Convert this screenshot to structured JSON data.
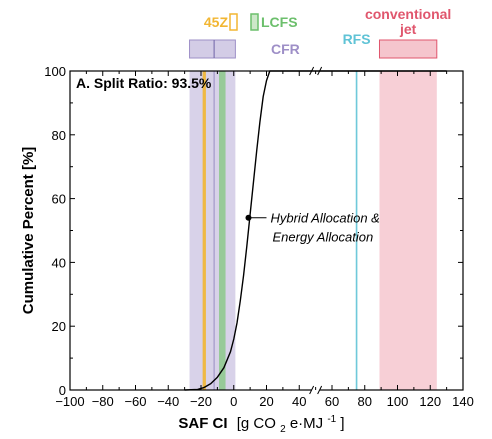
{
  "chart_data": {
    "type": "line",
    "panel_label": "A. Split Ratio: 93.5%",
    "xlabel_main": "SAF CI",
    "xlabel_units": "[g CO",
    "xlabel_sub": "2",
    "xlabel_rest": "e·MJ",
    "xlabel_sup": "-1",
    "xlabel_close": "]",
    "ylabel": "Cumulative Percent [%]",
    "xlim": [
      -100,
      140
    ],
    "ylim": [
      0,
      100
    ],
    "axis_break_at": 50,
    "xticks": [
      -100,
      -80,
      -60,
      -40,
      -20,
      0,
      20,
      40,
      60,
      80,
      100,
      120,
      140
    ],
    "xtick_labels": [
      "−100",
      "−80",
      "−60",
      "−40",
      "−20",
      "0",
      "20",
      "40",
      "60",
      "80",
      "100",
      "120",
      "140"
    ],
    "yticks": [
      0,
      20,
      40,
      60,
      80,
      100
    ],
    "ytick_labels": [
      "0",
      "20",
      "40",
      "60",
      "80",
      "100"
    ],
    "series": [
      {
        "name": "Hybrid Allocation & Energy Allocation",
        "color": "#000000",
        "x": [
          -30,
          -22,
          -18,
          -14,
          -10,
          -6,
          -2,
          0,
          2,
          4,
          6,
          8,
          10,
          12,
          14,
          16,
          18,
          20,
          22,
          30,
          50,
          130
        ],
        "y": [
          0,
          0.2,
          0.8,
          2,
          4,
          7,
          12,
          16,
          21,
          28,
          36,
          45,
          55,
          65,
          75,
          84,
          92,
          97,
          100,
          100,
          100,
          100
        ],
        "marker": {
          "x": 9,
          "y": 54
        }
      }
    ],
    "annotation": {
      "line1": "Hybrid Allocation &",
      "line2": "Energy Allocation"
    },
    "regions": [
      {
        "label": "CFR",
        "x0": -27,
        "x1": 1,
        "color": "#9e8fc7",
        "opacity": 0.4,
        "divider": -12
      },
      {
        "label": "45Z",
        "x0": -19,
        "x1": -17,
        "color": "#f2b632",
        "opacity": 0.9
      },
      {
        "label": "LCFS",
        "x0": -9,
        "x1": -5,
        "color": "#8cc98a",
        "opacity": 0.85
      },
      {
        "label": "RFS",
        "x0": 74.5,
        "x1": 75.5,
        "color": "#5fc3d6",
        "opacity": 0.9
      },
      {
        "label": "conventional\njet",
        "x0": 89,
        "x1": 124,
        "color": "#f2b6c0",
        "opacity": 0.65
      }
    ],
    "label_colors": {
      "45Z": "#f2b632",
      "LCFS": "#6cbf6c",
      "CFR": "#9e8fc7",
      "RFS": "#5fc3d6",
      "conventional": "#e0566d"
    },
    "top_labels": {
      "z45": "45Z",
      "lcfs": "LCFS",
      "cfr": "CFR",
      "rfs": "RFS",
      "conv1": "conventional",
      "conv2": "jet"
    },
    "grid": false
  }
}
